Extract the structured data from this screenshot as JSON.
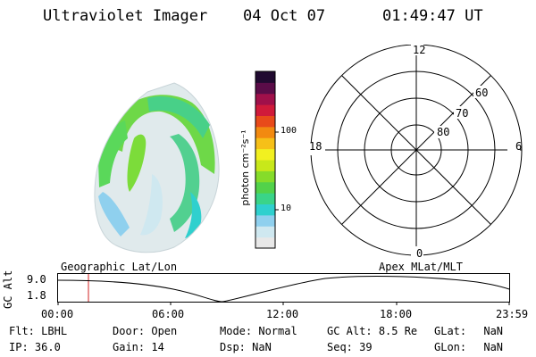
{
  "header": {
    "title": "Ultraviolet Imager",
    "date": "04 Oct 07",
    "time": "01:49:47 UT"
  },
  "colorbar": {
    "label": "photon cm⁻²s⁻¹",
    "ticks": [
      "100",
      "10"
    ],
    "colors": [
      "#e8e8e8",
      "#cfe8f0",
      "#8fd0ee",
      "#2fd0ce",
      "#3ad488",
      "#52d24a",
      "#86dc2a",
      "#c8e81a",
      "#f2f020",
      "#f6c018",
      "#f28a10",
      "#e84a1a",
      "#d01a3a",
      "#a0104a",
      "#5a0c48",
      "#200a30"
    ]
  },
  "polar_plot": {
    "mlt_labels": {
      "top": "12",
      "bottom": "0",
      "left": "18",
      "right": "6"
    },
    "lat_labels": [
      "60",
      "70",
      "80"
    ]
  },
  "timeline": {
    "axis_label": "GC Alt",
    "ticks_y": [
      "9.0",
      "1.8"
    ],
    "left_label": "Geographic Lat/Lon",
    "right_label": "Apex MLat/MLT",
    "ticks_x": [
      "00:00",
      "06:00",
      "12:00",
      "18:00",
      "23:59"
    ],
    "marker_color": "#d02020"
  },
  "info": {
    "row1": [
      {
        "key": "Flt:",
        "val": "LBHL"
      },
      {
        "key": "Door:",
        "val": "Open"
      },
      {
        "key": "Mode:",
        "val": "Normal"
      },
      {
        "key": "GC Alt:",
        "val": "8.5 Re"
      },
      {
        "key": "GLat:",
        "val": "NaN"
      }
    ],
    "row2": [
      {
        "key": "IP:",
        "val": "36.0"
      },
      {
        "key": "Gain:",
        "val": "14"
      },
      {
        "key": "Dsp:",
        "val": "NaN"
      },
      {
        "key": "Seq:",
        "val": "39"
      },
      {
        "key": "GLon:",
        "val": "NaN"
      }
    ]
  }
}
